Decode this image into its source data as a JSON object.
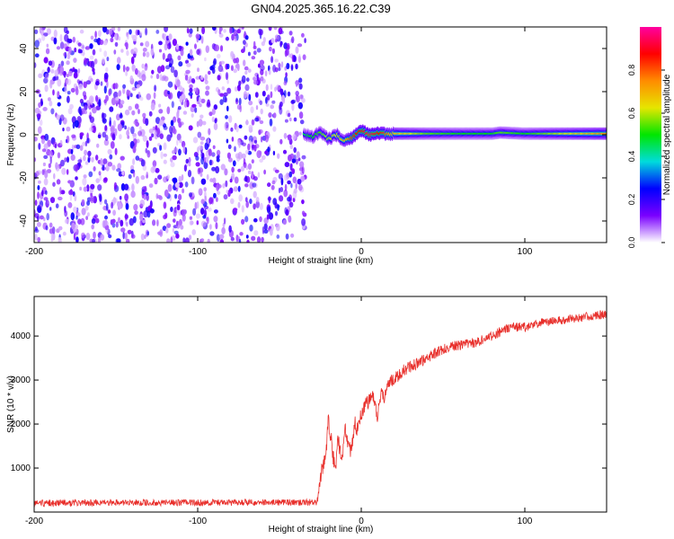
{
  "title": "GN04.2025.365.16.22.C39",
  "chart_data": [
    {
      "type": "heatmap",
      "title": "GN04.2025.365.16.22.C39",
      "xlabel": "Height of straight line (km)",
      "ylabel": "Frequency (Hz)",
      "xlim": [
        -200,
        150
      ],
      "ylim": [
        -50,
        50
      ],
      "x_ticks": [
        -200,
        -100,
        0,
        100
      ],
      "y_ticks": [
        -40,
        -20,
        0,
        20,
        40
      ],
      "noise_region_x": [
        -200,
        -35
      ],
      "signal_track": {
        "x": [
          -35,
          -30,
          -25,
          -20,
          -15,
          -10,
          -5,
          0,
          5,
          10,
          20,
          40,
          60,
          80,
          85,
          100,
          120,
          150
        ],
        "freq": [
          0,
          -1,
          1,
          -2,
          0,
          -3,
          -1,
          2,
          0,
          0.5,
          0.5,
          0.5,
          0.5,
          0.5,
          1,
          0.5,
          0.5,
          0.5
        ],
        "amplitude": [
          0.45,
          0.5,
          0.55,
          0.6,
          0.65,
          0.7,
          0.85,
          0.9,
          0.95,
          0.9,
          0.7,
          0.55,
          0.5,
          0.5,
          0.55,
          0.5,
          0.6,
          0.75
        ]
      },
      "colorbar": {
        "label": "Normalized spectral amplitude",
        "range": [
          0,
          1
        ],
        "ticks": [
          "0.0",
          "0.2",
          "0.4",
          "0.6",
          "0.8"
        ],
        "colors": [
          "#ffffff",
          "#7a00ff",
          "#0000ff",
          "#00dcdc",
          "#00e600",
          "#e6e600",
          "#ff8c00",
          "#ff0000",
          "#ff00a0"
        ]
      }
    },
    {
      "type": "line",
      "xlabel": "Height of straight line (km)",
      "ylabel": "SNR (10 * v/v)",
      "xlim": [
        -200,
        150
      ],
      "ylim": [
        0,
        4900
      ],
      "x_ticks": [
        -200,
        -100,
        0,
        100
      ],
      "y_ticks": [
        1000,
        2000,
        3000,
        4000
      ],
      "color": "#e8302c",
      "series": [
        {
          "name": "SNR",
          "x": [
            -200,
            -150,
            -100,
            -50,
            -27,
            -26,
            -24,
            -22,
            -20,
            -18,
            -16,
            -14,
            -12,
            -10,
            -8,
            -6,
            -4,
            -2,
            0,
            2,
            4,
            6,
            8,
            10,
            12,
            14,
            16,
            18,
            20,
            25,
            30,
            40,
            50,
            60,
            70,
            80,
            90,
            100,
            110,
            120,
            130,
            140,
            150
          ],
          "values": [
            200,
            220,
            210,
            220,
            220,
            500,
            1000,
            1200,
            2100,
            1500,
            900,
            1700,
            1100,
            1900,
            1500,
            1400,
            2000,
            1900,
            2200,
            2400,
            2500,
            2700,
            2500,
            2200,
            2700,
            2600,
            2800,
            3000,
            3000,
            3200,
            3300,
            3500,
            3700,
            3800,
            3850,
            4000,
            4200,
            4200,
            4300,
            4350,
            4400,
            4450,
            4500
          ],
          "noise_amplitude": [
            150,
            150,
            150,
            150,
            150,
            250,
            350,
            400,
            450,
            450,
            400,
            450,
            400,
            400,
            400,
            400,
            400,
            400,
            350,
            350,
            350,
            350,
            350,
            350,
            300,
            300,
            300,
            300,
            300,
            280,
            280,
            250,
            250,
            230,
            230,
            220,
            220,
            220,
            200,
            200,
            200,
            200,
            200
          ]
        }
      ]
    }
  ]
}
